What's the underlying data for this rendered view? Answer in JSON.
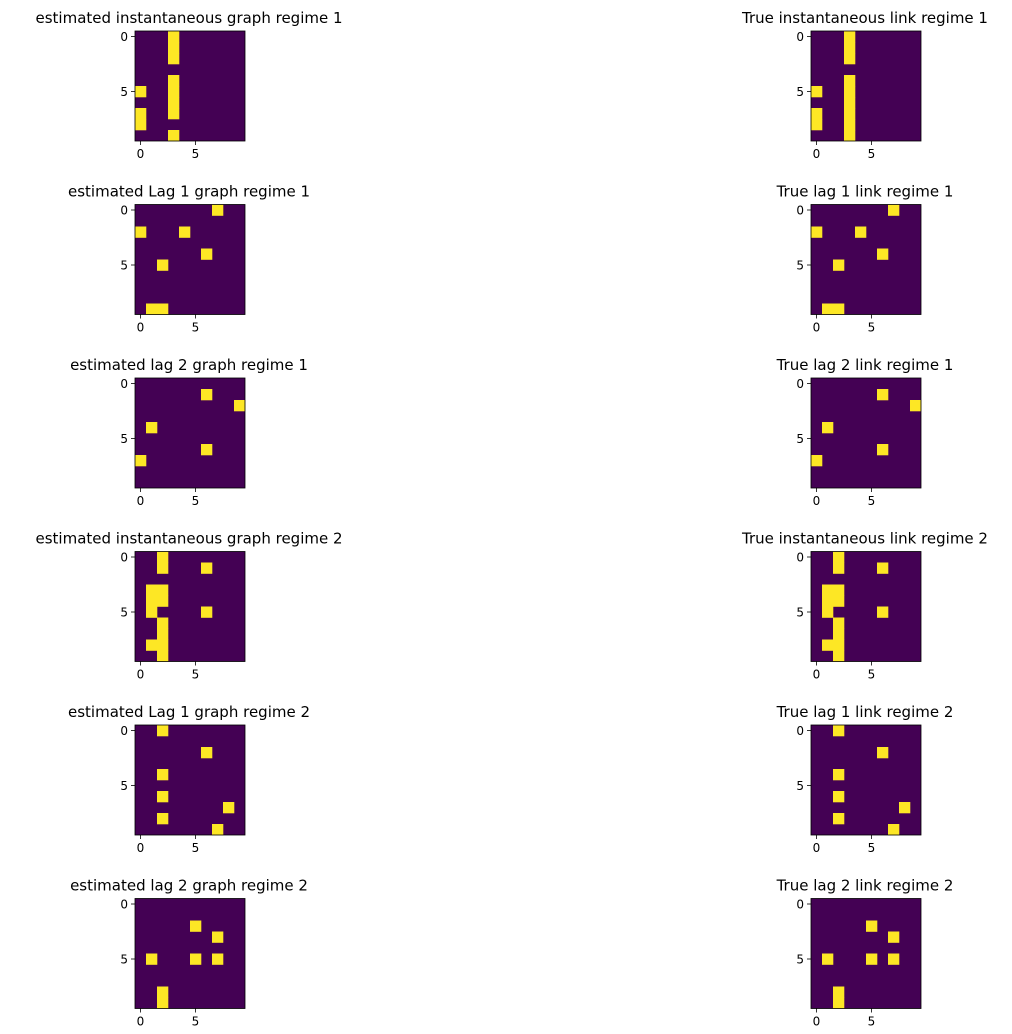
{
  "colors": {
    "background": "#440154",
    "link": "#fde725"
  },
  "chart_data": [
    {
      "type": "heatmap",
      "title": "estimated instantaneous graph regime 1",
      "x_ticks": [
        "0",
        "5"
      ],
      "y_ticks": [
        "0",
        "5"
      ],
      "cells": [
        [
          0,
          3
        ],
        [
          1,
          3
        ],
        [
          2,
          3
        ],
        [
          4,
          3
        ],
        [
          5,
          0
        ],
        [
          5,
          3
        ],
        [
          6,
          3
        ],
        [
          7,
          0
        ],
        [
          7,
          3
        ],
        [
          8,
          0
        ],
        [
          9,
          3
        ]
      ]
    },
    {
      "type": "heatmap",
      "title": "True instantaneous link regime 1",
      "x_ticks": [
        "0",
        "5"
      ],
      "y_ticks": [
        "0",
        "5"
      ],
      "cells": [
        [
          0,
          3
        ],
        [
          1,
          3
        ],
        [
          2,
          3
        ],
        [
          4,
          3
        ],
        [
          5,
          0
        ],
        [
          5,
          3
        ],
        [
          6,
          3
        ],
        [
          7,
          0
        ],
        [
          7,
          3
        ],
        [
          8,
          0
        ],
        [
          8,
          3
        ],
        [
          9,
          3
        ]
      ]
    },
    {
      "type": "heatmap",
      "title": "estimated Lag 1 graph regime 1",
      "x_ticks": [
        "0",
        "5"
      ],
      "y_ticks": [
        "0",
        "5"
      ],
      "cells": [
        [
          0,
          7
        ],
        [
          2,
          0
        ],
        [
          2,
          4
        ],
        [
          4,
          6
        ],
        [
          5,
          2
        ],
        [
          9,
          1
        ],
        [
          9,
          2
        ]
      ]
    },
    {
      "type": "heatmap",
      "title": "True lag 1 link regime 1",
      "x_ticks": [
        "0",
        "5"
      ],
      "y_ticks": [
        "0",
        "5"
      ],
      "cells": [
        [
          0,
          7
        ],
        [
          2,
          0
        ],
        [
          2,
          4
        ],
        [
          4,
          6
        ],
        [
          5,
          2
        ],
        [
          9,
          1
        ],
        [
          9,
          2
        ]
      ]
    },
    {
      "type": "heatmap",
      "title": "estimated lag 2 graph regime 1",
      "x_ticks": [
        "0",
        "5"
      ],
      "y_ticks": [
        "0",
        "5"
      ],
      "cells": [
        [
          1,
          6
        ],
        [
          2,
          9
        ],
        [
          4,
          1
        ],
        [
          6,
          6
        ],
        [
          7,
          0
        ]
      ]
    },
    {
      "type": "heatmap",
      "title": "True lag 2 link regime 1",
      "x_ticks": [
        "0",
        "5"
      ],
      "y_ticks": [
        "0",
        "5"
      ],
      "cells": [
        [
          1,
          6
        ],
        [
          2,
          9
        ],
        [
          4,
          1
        ],
        [
          6,
          6
        ],
        [
          7,
          0
        ]
      ]
    },
    {
      "type": "heatmap",
      "title": "estimated instantaneous graph regime 2",
      "x_ticks": [
        "0",
        "5"
      ],
      "y_ticks": [
        "0",
        "5"
      ],
      "cells": [
        [
          0,
          2
        ],
        [
          1,
          2
        ],
        [
          1,
          6
        ],
        [
          3,
          1
        ],
        [
          3,
          2
        ],
        [
          4,
          1
        ],
        [
          4,
          2
        ],
        [
          5,
          1
        ],
        [
          5,
          6
        ],
        [
          6,
          2
        ],
        [
          7,
          2
        ],
        [
          8,
          1
        ],
        [
          8,
          2
        ],
        [
          9,
          2
        ]
      ]
    },
    {
      "type": "heatmap",
      "title": "True instantaneous link regime 2",
      "x_ticks": [
        "0",
        "5"
      ],
      "y_ticks": [
        "0",
        "5"
      ],
      "cells": [
        [
          0,
          2
        ],
        [
          1,
          2
        ],
        [
          1,
          6
        ],
        [
          3,
          1
        ],
        [
          3,
          2
        ],
        [
          4,
          1
        ],
        [
          4,
          2
        ],
        [
          5,
          1
        ],
        [
          5,
          6
        ],
        [
          6,
          2
        ],
        [
          7,
          2
        ],
        [
          8,
          1
        ],
        [
          8,
          2
        ],
        [
          9,
          2
        ]
      ]
    },
    {
      "type": "heatmap",
      "title": "estimated Lag 1 graph regime 2",
      "x_ticks": [
        "0",
        "5"
      ],
      "y_ticks": [
        "0",
        "5"
      ],
      "cells": [
        [
          0,
          2
        ],
        [
          2,
          6
        ],
        [
          4,
          2
        ],
        [
          6,
          2
        ],
        [
          7,
          8
        ],
        [
          8,
          2
        ],
        [
          9,
          7
        ]
      ]
    },
    {
      "type": "heatmap",
      "title": "True lag 1 link regime 2",
      "x_ticks": [
        "0",
        "5"
      ],
      "y_ticks": [
        "0",
        "5"
      ],
      "cells": [
        [
          0,
          2
        ],
        [
          2,
          6
        ],
        [
          4,
          2
        ],
        [
          6,
          2
        ],
        [
          7,
          8
        ],
        [
          8,
          2
        ],
        [
          9,
          7
        ]
      ]
    },
    {
      "type": "heatmap",
      "title": "estimated lag 2 graph regime 2",
      "x_ticks": [
        "0",
        "5"
      ],
      "y_ticks": [
        "0",
        "5"
      ],
      "cells": [
        [
          2,
          5
        ],
        [
          3,
          7
        ],
        [
          5,
          1
        ],
        [
          5,
          5
        ],
        [
          5,
          7
        ],
        [
          8,
          2
        ],
        [
          9,
          2
        ]
      ]
    },
    {
      "type": "heatmap",
      "title": "True lag 2 link regime 2",
      "x_ticks": [
        "0",
        "5"
      ],
      "y_ticks": [
        "0",
        "5"
      ],
      "cells": [
        [
          2,
          5
        ],
        [
          3,
          7
        ],
        [
          5,
          1
        ],
        [
          5,
          5
        ],
        [
          5,
          7
        ],
        [
          8,
          2
        ],
        [
          9,
          2
        ]
      ]
    }
  ]
}
